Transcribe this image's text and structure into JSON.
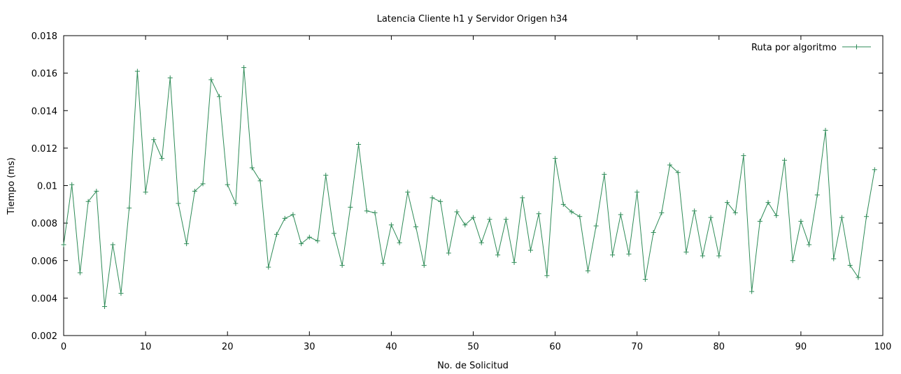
{
  "chart_data": {
    "type": "line",
    "title": "Latencia Cliente h1 y Servidor Origen h34",
    "xlabel": "No. de Solicitud",
    "ylabel": "Tiempo (ms)",
    "xlim": [
      0,
      100
    ],
    "ylim": [
      0.002,
      0.018
    ],
    "xticks": [
      0,
      10,
      20,
      30,
      40,
      50,
      60,
      70,
      80,
      90,
      100
    ],
    "xtick_labels": [
      "0",
      "10",
      "20",
      "30",
      "40",
      "50",
      "60",
      "70",
      "80",
      "90",
      "100"
    ],
    "yticks": [
      0.002,
      0.004,
      0.006,
      0.008,
      0.01,
      0.012,
      0.014,
      0.016,
      0.018
    ],
    "ytick_labels": [
      "0.002",
      "0.004",
      "0.006",
      "0.008",
      "0.01",
      "0.012",
      "0.014",
      "0.016",
      "0.018"
    ],
    "grid": false,
    "legend_position": "top-right",
    "series": [
      {
        "name": "Ruta por algoritmo",
        "color": "#2e8b57",
        "marker": "plus",
        "x": [
          0,
          1,
          2,
          3,
          4,
          5,
          6,
          7,
          8,
          9,
          10,
          11,
          12,
          13,
          14,
          15,
          16,
          17,
          18,
          19,
          20,
          21,
          22,
          23,
          24,
          25,
          26,
          27,
          28,
          29,
          30,
          31,
          32,
          33,
          34,
          35,
          36,
          37,
          38,
          39,
          40,
          41,
          42,
          43,
          44,
          45,
          46,
          47,
          48,
          49,
          50,
          51,
          52,
          53,
          54,
          55,
          56,
          57,
          58,
          59,
          60,
          61,
          62,
          63,
          64,
          65,
          66,
          67,
          68,
          69,
          70,
          71,
          72,
          73,
          74,
          75,
          76,
          77,
          78,
          79,
          80,
          81,
          82,
          83,
          84,
          85,
          86,
          87,
          88,
          89,
          90,
          91,
          92,
          93,
          94,
          95,
          96,
          97,
          98,
          99
        ],
        "values": [
          0.00685,
          0.01005,
          0.00535,
          0.00915,
          0.0097,
          0.00355,
          0.00685,
          0.00425,
          0.0088,
          0.0161,
          0.00965,
          0.01245,
          0.01145,
          0.01575,
          0.00905,
          0.0069,
          0.0097,
          0.0101,
          0.01565,
          0.01475,
          0.01005,
          0.00905,
          0.0163,
          0.01095,
          0.01025,
          0.00565,
          0.0074,
          0.00825,
          0.00845,
          0.0069,
          0.00725,
          0.00705,
          0.01055,
          0.00745,
          0.00575,
          0.00885,
          0.0122,
          0.00865,
          0.00855,
          0.00585,
          0.0079,
          0.00695,
          0.00965,
          0.0078,
          0.00575,
          0.00935,
          0.00915,
          0.0064,
          0.0086,
          0.0079,
          0.0083,
          0.00695,
          0.0082,
          0.0063,
          0.0082,
          0.0059,
          0.00935,
          0.00655,
          0.0085,
          0.0052,
          0.01145,
          0.009,
          0.0086,
          0.00835,
          0.00545,
          0.00785,
          0.0106,
          0.0063,
          0.00845,
          0.00635,
          0.00965,
          0.005,
          0.0075,
          0.00855,
          0.0111,
          0.0107,
          0.00645,
          0.00865,
          0.00625,
          0.0083,
          0.00625,
          0.0091,
          0.00855,
          0.0116,
          0.00435,
          0.0081,
          0.0091,
          0.0084,
          0.01135,
          0.006,
          0.0081,
          0.00685,
          0.0095,
          0.01295,
          0.0061,
          0.0083,
          0.00575,
          0.0051,
          0.00835,
          0.01085
        ]
      }
    ]
  }
}
